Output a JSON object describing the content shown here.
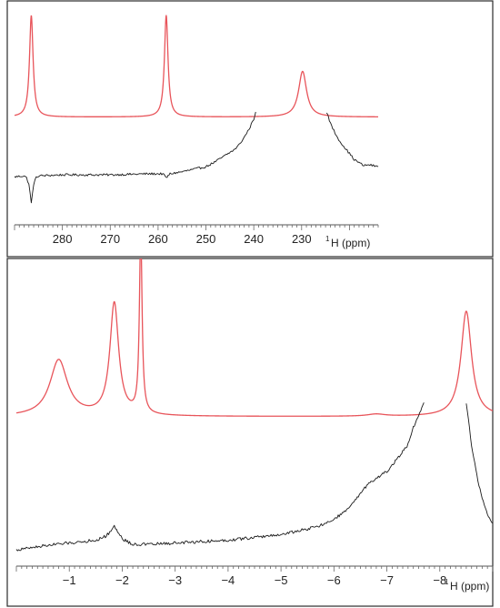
{
  "colors": {
    "calc": "#e8545a",
    "exp": "#1a1a1a"
  },
  "chart_data": [
    {
      "type": "line",
      "x_unit": "ppm",
      "xlim": [
        290,
        214
      ],
      "x_reversed": true,
      "ylim": [
        -1.0,
        1.1
      ],
      "xticks": [
        280,
        270,
        260,
        250,
        240,
        230
      ],
      "xlabel_sup": "1",
      "xlabel": "H (ppm)",
      "grid": false,
      "series": [
        {
          "style": "red",
          "baseline": 0.0,
          "peaks": [
            {
              "x": 286.5,
              "height": 1.0,
              "hwhm": 0.45
            },
            {
              "x": 258.3,
              "height": 1.0,
              "hwhm": 0.45
            },
            {
              "x": 229.8,
              "height": 0.45,
              "hwhm": 1.0
            }
          ],
          "x_range": [
            290,
            214
          ]
        },
        {
          "style": "black",
          "segments": [
            {
              "x": [
                290,
                288,
                287.5,
                287.0,
                286.5,
                286.0,
                285.5,
                285,
                280,
                270,
                262,
                259,
                258.3,
                257.5,
                255,
                252,
                250,
                248,
                246,
                244,
                243,
                242,
                241,
                240,
                239.6
              ],
              "y": [
                -0.59,
                -0.58,
                -0.6,
                -0.66,
                -0.85,
                -0.66,
                -0.6,
                -0.58,
                -0.57,
                -0.57,
                -0.56,
                -0.56,
                -0.6,
                -0.56,
                -0.54,
                -0.51,
                -0.49,
                -0.44,
                -0.38,
                -0.32,
                -0.27,
                -0.2,
                -0.12,
                -0.02,
                0.05
              ]
            },
            {
              "x": [
                224.8,
                224,
                223,
                222,
                221,
                220,
                219,
                218,
                217,
                216,
                215,
                214
              ],
              "y": [
                0.05,
                -0.06,
                -0.16,
                -0.24,
                -0.3,
                -0.36,
                -0.42,
                -0.45,
                -0.48,
                -0.47,
                -0.48,
                -0.49
              ]
            }
          ]
        }
      ]
    },
    {
      "type": "line",
      "x_unit": "ppm",
      "xlim": [
        0.0,
        -9.0
      ],
      "x_reversed": true,
      "ylim": [
        -1.0,
        1.1
      ],
      "xticks": [
        -1,
        -2,
        -3,
        -4,
        -5,
        -6,
        -7,
        -8
      ],
      "xlabel_sup": "1",
      "xlabel": "H (ppm)",
      "grid": false,
      "series": [
        {
          "style": "red",
          "baseline": 0.0,
          "peaks": [
            {
              "x": -0.8,
              "height": 0.4,
              "hwhm": 0.2
            },
            {
              "x": -1.85,
              "height": 0.8,
              "hwhm": 0.1
            },
            {
              "x": -2.35,
              "height": 1.3,
              "hwhm": 0.03
            },
            {
              "x": -6.8,
              "height": 0.015,
              "hwhm": 0.2
            },
            {
              "x": -8.5,
              "height": 0.75,
              "hwhm": 0.12
            }
          ],
          "x_range": [
            0.0,
            -9.0
          ]
        },
        {
          "style": "black",
          "segments": [
            {
              "x": [
                0.0,
                -0.5,
                -1.0,
                -1.5,
                -1.7,
                -1.85,
                -2.0,
                -2.2,
                -2.5,
                -3.0,
                -3.5,
                -4.0,
                -4.5,
                -5.0,
                -5.5,
                -5.8,
                -6.0,
                -6.2,
                -6.4,
                -6.6,
                -6.8,
                -7.0,
                -7.2,
                -7.4,
                -7.5,
                -7.6,
                -7.7
              ],
              "y": [
                -0.95,
                -0.92,
                -0.9,
                -0.88,
                -0.85,
                -0.78,
                -0.87,
                -0.91,
                -0.91,
                -0.9,
                -0.89,
                -0.88,
                -0.86,
                -0.84,
                -0.8,
                -0.77,
                -0.73,
                -0.68,
                -0.6,
                -0.5,
                -0.44,
                -0.39,
                -0.3,
                -0.2,
                -0.08,
                0.0,
                0.1
              ]
            },
            {
              "x": [
                -8.5,
                -8.6,
                -8.7,
                -8.8,
                -8.9,
                -9.0
              ],
              "y": [
                0.1,
                -0.2,
                -0.42,
                -0.58,
                -0.7,
                -0.76
              ]
            }
          ]
        }
      ]
    }
  ]
}
